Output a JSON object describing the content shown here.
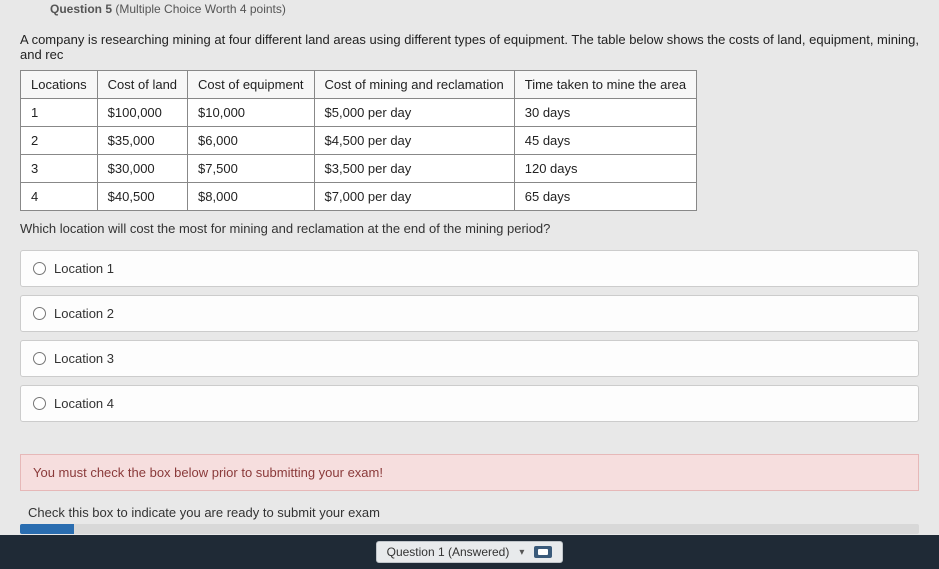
{
  "question": {
    "header_label": "Question 5",
    "header_meta": "(Multiple Choice Worth 4 points)",
    "stem": "A company is researching mining at four different land areas using different types of equipment. The table below shows the costs of land, equipment, mining, and rec",
    "followup": "Which location will cost the most for mining and reclamation at the end of the mining period?"
  },
  "table": {
    "headers": [
      "Locations",
      "Cost of land",
      "Cost of equipment",
      "Cost of mining and reclamation",
      "Time taken to mine the area"
    ],
    "rows": [
      [
        "1",
        "$100,000",
        "$10,000",
        "$5,000 per day",
        "30 days"
      ],
      [
        "2",
        "$35,000",
        "$6,000",
        "$4,500 per day",
        "45 days"
      ],
      [
        "3",
        "$30,000",
        "$7,500",
        "$3,500 per day",
        "120 days"
      ],
      [
        "4",
        "$40,500",
        "$8,000",
        "$7,000 per day",
        "65 days"
      ]
    ]
  },
  "choices": {
    "a": "Location 1",
    "b": "Location 2",
    "c": "Location 3",
    "d": "Location 4"
  },
  "warning_text": "You must check the box below prior to submitting your exam!",
  "check_text": "Check this box to indicate you are ready to submit your exam",
  "taskbar": {
    "pill_text": "Question 1 (Answered)"
  },
  "colors": {
    "warning_bg": "#f6dede",
    "progress_bar": "#2a6db0",
    "taskbar_bg": "#1f2a36"
  }
}
